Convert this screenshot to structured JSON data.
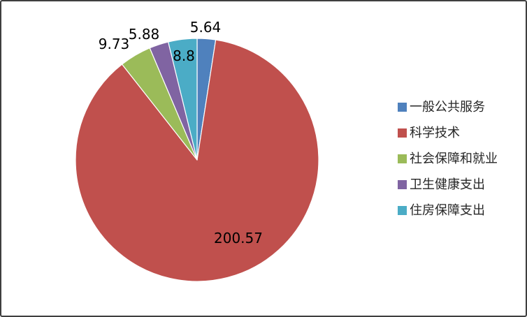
{
  "chart_data": {
    "type": "pie",
    "title": "",
    "legend_position": "right",
    "start_angle_deg": 0,
    "direction": "clockwise",
    "categories": [
      "一般公共服务",
      "科学技术",
      "社会保障和就业",
      "卫生健康支出",
      "住房保障支出"
    ],
    "values": [
      5.64,
      200.57,
      9.73,
      5.88,
      8.8
    ],
    "data_labels": [
      "5.64",
      "200.57",
      "9.73",
      "5.88",
      "8.8"
    ],
    "colors": [
      "#4F81BD",
      "#C0504D",
      "#9BBB59",
      "#8064A2",
      "#4BACC6"
    ],
    "total": 230.62,
    "grid": false
  }
}
